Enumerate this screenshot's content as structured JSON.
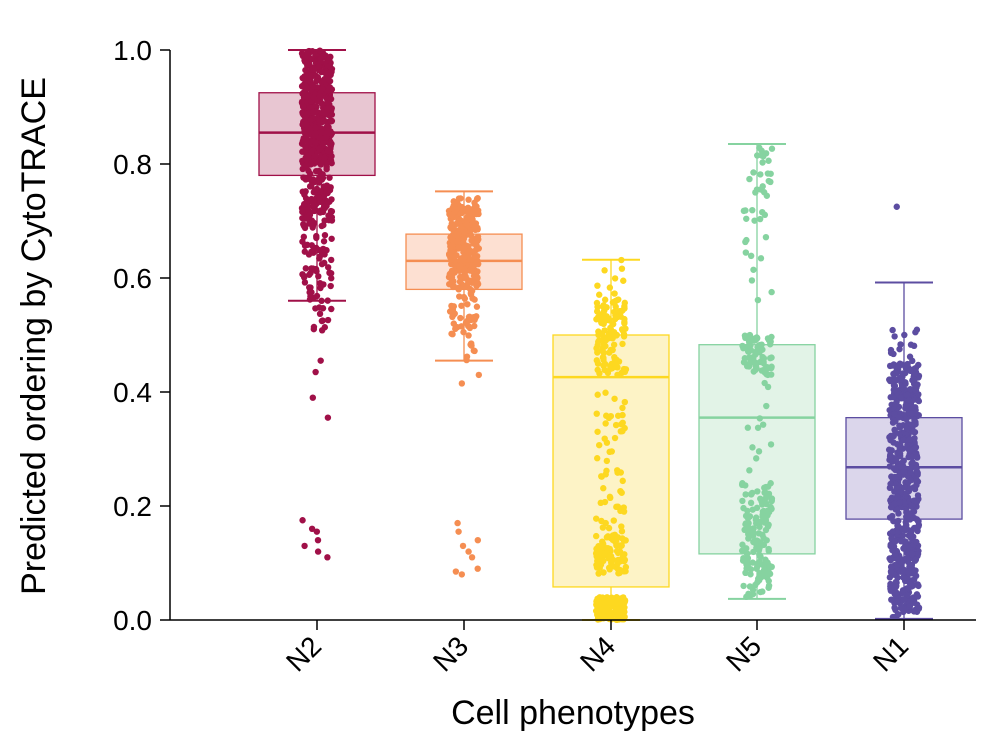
{
  "chart_data": {
    "type": "box",
    "xlabel": "Cell phenotypes",
    "ylabel": "Predicted ordering by CytoTRACE",
    "ylim": [
      0,
      1
    ],
    "yticks": [
      "0.0",
      "0.2",
      "0.4",
      "0.6",
      "0.8",
      "1.0"
    ],
    "grid": false,
    "legend": "none",
    "jitter_points": true,
    "series": [
      {
        "category": "N2",
        "color": "#A01048",
        "fill": "#E8C6D2",
        "q1": 0.78,
        "median": 0.855,
        "q3": 0.925,
        "whisker_low": 0.56,
        "whisker_high": 1.0,
        "outliers": [
          0.355,
          0.39,
          0.435,
          0.455,
          0.175,
          0.16,
          0.155,
          0.14,
          0.13,
          0.11,
          0.12
        ]
      },
      {
        "category": "N3",
        "color": "#F58E52",
        "fill": "#FDE0D2",
        "q1": 0.58,
        "median": 0.63,
        "q3": 0.677,
        "whisker_low": 0.455,
        "whisker_high": 0.752,
        "outliers": [
          0.43,
          0.415,
          0.17,
          0.155,
          0.14,
          0.13,
          0.12,
          0.11,
          0.09,
          0.08,
          0.085
        ]
      },
      {
        "category": "N4",
        "color": "#FDD820",
        "fill": "#FDF3C6",
        "q1": 0.058,
        "median": 0.426,
        "q3": 0.5,
        "whisker_low": 0.0,
        "whisker_high": 0.632,
        "outliers": []
      },
      {
        "category": "N5",
        "color": "#86D3A0",
        "fill": "#E2F3E7",
        "q1": 0.116,
        "median": 0.355,
        "q3": 0.483,
        "whisker_low": 0.037,
        "whisker_high": 0.835,
        "outliers": []
      },
      {
        "category": "N1",
        "color": "#5C4DA1",
        "fill": "#DBD6EB",
        "q1": 0.177,
        "median": 0.268,
        "q3": 0.355,
        "whisker_low": 0.002,
        "whisker_high": 0.592,
        "outliers": [
          0.725
        ]
      }
    ]
  }
}
